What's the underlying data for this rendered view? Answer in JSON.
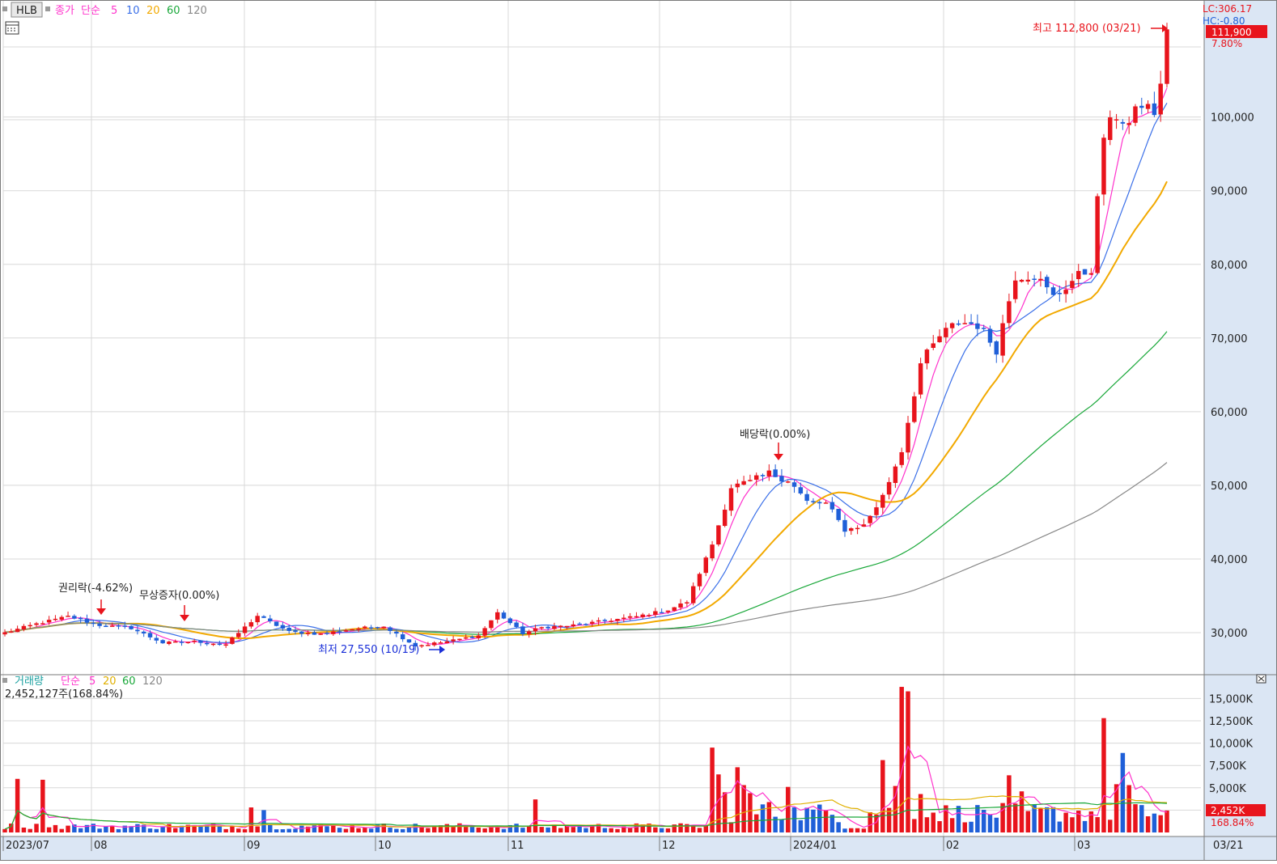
{
  "colors": {
    "up": "#e8141c",
    "down": "#1f5fd8",
    "ma5": "#ff33cc",
    "ma10": "#3a6fe8",
    "ma20": "#f2a900",
    "ma60": "#1aa83a",
    "ma120": "#888888",
    "vol_ma5": "#ff33cc",
    "vol_ma20": "#e0b000",
    "vol_ma60": "#1aa83a",
    "axis_panel": "#dbe6f4",
    "grid": "#d8d8d8",
    "annotation_up": "#e8141c",
    "annotation_down": "#1a2fd8"
  },
  "price_legend": {
    "ticker": "HLB",
    "close_label": "종가",
    "ma_label": "단순",
    "periods": [
      "5",
      "10",
      "20",
      "60",
      "120"
    ]
  },
  "volume_legend": {
    "label": "거래량",
    "ma_label": "단순",
    "periods": [
      "5",
      "20",
      "60",
      "120"
    ],
    "current": "2,452,127주(168.84%)"
  },
  "top_right": {
    "lc": "LC:306.17",
    "hc": "HC:-0.80",
    "last_price": "111,900",
    "change_pct": "7.80%"
  },
  "volume_right": {
    "last_volume": "2,452K",
    "ratio": "168.84%"
  },
  "annotations": {
    "high": "최고 112,800 (03/21)",
    "low": "최저 27,550 (10/19)",
    "rights": "권리락(-4.62%)",
    "bonus": "무상증자(0.00%)",
    "dividend": "배당락(0.00%)"
  },
  "chart_data": [
    {
      "type": "candlestick",
      "title": "HLB",
      "x_labels": [
        "2023/07",
        "08",
        "09",
        "10",
        "11",
        "12",
        "2024/01",
        "02",
        "03",
        "03/21"
      ],
      "y_ticks": [
        "30,000",
        "40,000",
        "50,000",
        "60,000",
        "70,000",
        "80,000",
        "90,000",
        "100,000"
      ],
      "ylim": [
        25000,
        115000
      ],
      "grid": true,
      "anchors": [
        [
          0,
          30000
        ],
        [
          5,
          31200
        ],
        [
          10,
          32200
        ],
        [
          15,
          31000
        ],
        [
          20,
          30600
        ],
        [
          25,
          28600
        ],
        [
          30,
          28800
        ],
        [
          35,
          28400
        ],
        [
          40,
          32300
        ],
        [
          45,
          30100
        ],
        [
          50,
          29800
        ],
        [
          55,
          30500
        ],
        [
          60,
          30900
        ],
        [
          65,
          28200
        ],
        [
          70,
          28800
        ],
        [
          75,
          29600
        ],
        [
          78,
          32700
        ],
        [
          82,
          29900
        ],
        [
          85,
          30700
        ],
        [
          90,
          31000
        ],
        [
          95,
          31600
        ],
        [
          100,
          32200
        ],
        [
          105,
          33100
        ],
        [
          108,
          34200
        ],
        [
          112,
          42000
        ],
        [
          115,
          49800
        ],
        [
          118,
          50400
        ],
        [
          121,
          51600
        ],
        [
          124,
          50800
        ],
        [
          127,
          47700
        ],
        [
          130,
          47500
        ],
        [
          133,
          43900
        ],
        [
          136,
          44600
        ],
        [
          139,
          48500
        ],
        [
          142,
          54800
        ],
        [
          145,
          66500
        ],
        [
          148,
          70200
        ],
        [
          151,
          72200
        ],
        [
          154,
          71800
        ],
        [
          157,
          68500
        ],
        [
          160,
          78500
        ],
        [
          163,
          78600
        ],
        [
          166,
          75500
        ],
        [
          169,
          77800
        ],
        [
          172,
          79500
        ],
        [
          174,
          97500
        ],
        [
          176,
          100300
        ],
        [
          178,
          99000
        ],
        [
          180,
          101800
        ],
        [
          182,
          100700
        ],
        [
          183,
          103800
        ],
        [
          184,
          111900
        ]
      ],
      "ma_periods": [
        5,
        10,
        20,
        60,
        120
      ],
      "last_close": 111900,
      "max_high": 112800,
      "min_low": 27550
    },
    {
      "type": "bar",
      "title": "거래량",
      "y_ticks": [
        "2,500K",
        "5,000K",
        "7,500K",
        "10,000K",
        "12,500K",
        "15,000K"
      ],
      "ylim": [
        0,
        17500
      ],
      "unit": "K",
      "spikes": [
        [
          2,
          6000
        ],
        [
          6,
          5900
        ],
        [
          39,
          2800
        ],
        [
          41,
          2500
        ],
        [
          84,
          3700
        ],
        [
          112,
          9500
        ],
        [
          113,
          6500
        ],
        [
          114,
          4500
        ],
        [
          116,
          7300
        ],
        [
          117,
          5300
        ],
        [
          118,
          4400
        ],
        [
          121,
          3400
        ],
        [
          124,
          5100
        ],
        [
          139,
          8100
        ],
        [
          141,
          5200
        ],
        [
          142,
          16300
        ],
        [
          143,
          15800
        ],
        [
          145,
          4300
        ],
        [
          159,
          6400
        ],
        [
          161,
          4600
        ],
        [
          174,
          12800
        ],
        [
          176,
          5400
        ],
        [
          177,
          8900
        ],
        [
          178,
          5300
        ],
        [
          184,
          2452
        ]
      ],
      "last_volume": 2452
    }
  ]
}
